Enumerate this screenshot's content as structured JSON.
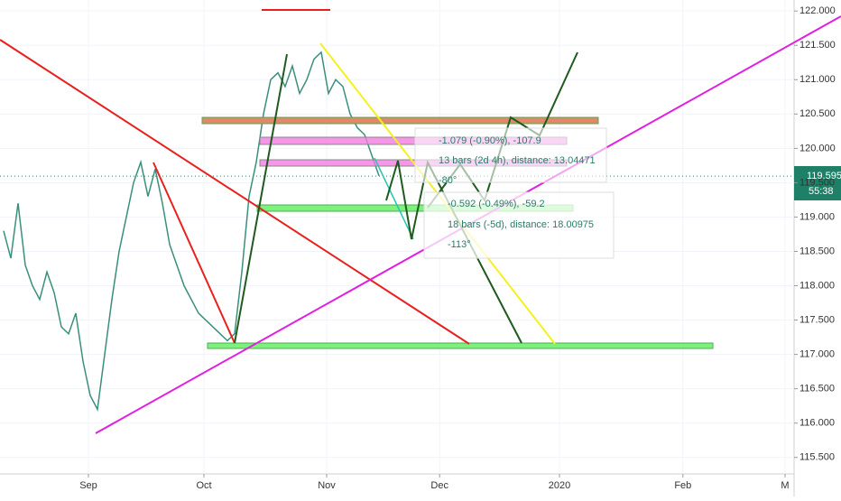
{
  "chart_data": {
    "type": "line",
    "categories": [
      null,
      null,
      null,
      null,
      null,
      null,
      null,
      null,
      null,
      null,
      null,
      null,
      null,
      null,
      null,
      null,
      null,
      null,
      null,
      null,
      null,
      null,
      null,
      null,
      null,
      null,
      null,
      null,
      null,
      null,
      null,
      null,
      null,
      null,
      null,
      null,
      null,
      null,
      null,
      null,
      null,
      null,
      null,
      null,
      null,
      null,
      null,
      null,
      null,
      null,
      null,
      null,
      null
    ],
    "values": [
      118.8,
      118.4,
      119.2,
      118.3,
      118.0,
      117.8,
      118.2,
      117.9,
      117.4,
      117.3,
      117.6,
      116.9,
      116.4,
      116.2,
      117.0,
      117.8,
      118.5,
      119.0,
      119.5,
      119.8,
      119.3,
      119.7,
      119.2,
      118.6,
      118.3,
      118.0,
      117.8,
      117.6,
      117.5,
      117.4,
      117.3,
      117.2,
      117.3,
      118.2,
      119.3,
      119.8,
      120.5,
      121.0,
      121.1,
      120.9,
      121.2,
      120.8,
      121.0,
      121.3,
      121.4,
      120.8,
      121.0,
      120.9,
      120.5,
      120.3,
      120.2,
      119.9,
      119.6
    ],
    "color": "#3a8f7c",
    "xlim": [
      -0.5,
      109.5
    ],
    "xticks": [
      {
        "value": 11.75,
        "label": "Sep"
      },
      {
        "value": 27.75,
        "label": "Oct"
      },
      {
        "value": 44.75,
        "label": "Nov"
      },
      {
        "value": 60.4,
        "label": "Dec"
      },
      {
        "value": 77,
        "label": "2020"
      },
      {
        "value": 94.1,
        "label": "Feb"
      },
      {
        "value": 108.25,
        "label": "M"
      }
    ],
    "ylim": [
      115.26,
      122.16
    ],
    "yticks": [
      {
        "value": 115.5,
        "label": "115.500"
      },
      {
        "value": 116,
        "label": "116.000"
      },
      {
        "value": 116.5,
        "label": "116.500"
      },
      {
        "value": 117,
        "label": "117.000"
      },
      {
        "value": 117.5,
        "label": "117.500"
      },
      {
        "value": 118,
        "label": "118.000"
      },
      {
        "value": 118.5,
        "label": "118.500"
      },
      {
        "value": 119,
        "label": "119.000"
      },
      {
        "value": 119.5,
        "label": "119.500"
      },
      {
        "value": 120,
        "label": "120.000"
      },
      {
        "value": 120.5,
        "label": "120.500"
      },
      {
        "value": 121,
        "label": "121.000"
      },
      {
        "value": 121.5,
        "label": "121.500"
      },
      {
        "value": 122,
        "label": "122.000"
      }
    ],
    "last_price": 119.595,
    "countdown": "55:38",
    "annotations": [
      "-1.079 (-0.90%), -107.9",
      "13 bars (2d 4h), distance: 13.04471",
      "-80°",
      "-0.592 (-0.49%), -59.2",
      "18 bars (-5d), distance: 18.00975",
      "-113°"
    ]
  }
}
